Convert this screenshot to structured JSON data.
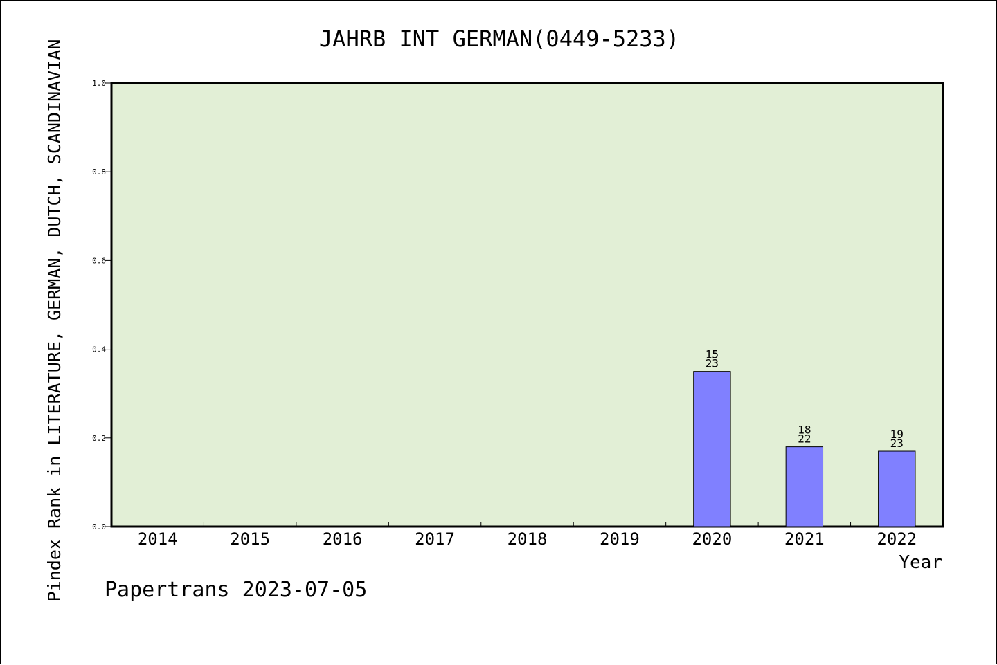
{
  "chart_data": {
    "type": "bar",
    "title": "JAHRB INT GERMAN(0449-5233)",
    "xlabel": "Year",
    "ylabel": "Pindex Rank in LITERATURE, GERMAN, DUTCH, SCANDINAVIAN",
    "categories": [
      "2014",
      "2015",
      "2016",
      "2017",
      "2018",
      "2019",
      "2020",
      "2021",
      "2022"
    ],
    "values": [
      null,
      null,
      null,
      null,
      null,
      null,
      0.35,
      0.18,
      0.17
    ],
    "bar_labels": [
      null,
      null,
      null,
      null,
      null,
      null,
      {
        "top": "15",
        "bottom": "23"
      },
      {
        "top": "18",
        "bottom": "22"
      },
      {
        "top": "19",
        "bottom": "23"
      }
    ],
    "ylim": [
      0,
      1.0
    ],
    "yticks": [
      "0.0",
      "0.2",
      "0.4",
      "0.6",
      "0.8",
      "1.0"
    ],
    "grid": false,
    "colors": {
      "plot_background": "#e2efd6",
      "bar_fill": "#8080ff",
      "bar_stroke": "#000000"
    }
  },
  "footer": {
    "note": "Papertrans 2023-07-05"
  }
}
